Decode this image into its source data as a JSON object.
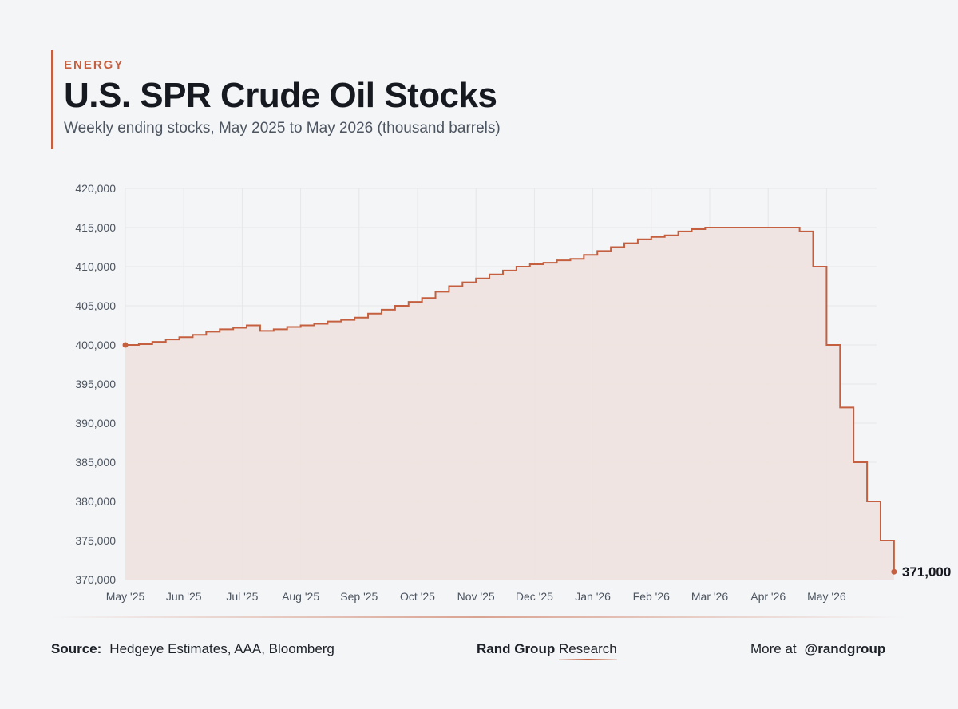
{
  "header": {
    "kicker": "ENERGY",
    "title": "U.S. SPR Crude Oil Stocks",
    "subtitle": "Weekly ending stocks, May 2025 to May 2026 (thousand barrels)"
  },
  "footer": {
    "source_label": "Source:",
    "source_text": "Hedgeye Estimates, AAA, Bloomberg",
    "brand_name": "Rand Group",
    "brand_sub": "Research",
    "more_label": "More at",
    "handle": "@randgroup"
  },
  "colors": {
    "accent": "#c4603f",
    "fill": "#f0e2df",
    "grid": "#e4e6ea",
    "axis_text": "#4c5560"
  },
  "chart_data": {
    "type": "area",
    "step": true,
    "x_ticks": [
      "May '25",
      "Jun '25",
      "Jul '25",
      "Aug '25",
      "Sep '25",
      "Oct '25",
      "Nov '25",
      "Dec '25",
      "Jan '26",
      "Feb '26",
      "Mar '26",
      "Apr '26",
      "May '26"
    ],
    "ylim": [
      370000,
      420000
    ],
    "y_ticks": [
      370000,
      375000,
      380000,
      385000,
      390000,
      395000,
      400000,
      405000,
      410000,
      415000,
      420000
    ],
    "end_label": "371,000",
    "series": [
      {
        "values": [
          400000,
          400100,
          400400,
          400700,
          401000,
          401300,
          401700,
          402000,
          402200,
          402500,
          401800,
          402000,
          402300,
          402500,
          402700,
          403000,
          403200,
          403500,
          404000,
          404500,
          405000,
          405500,
          406000,
          406800,
          407500,
          408000,
          408500,
          409000,
          409500,
          410000,
          410300,
          410500,
          410800,
          411000,
          411500,
          412000,
          412500,
          413000,
          413500,
          413800,
          414000,
          414500,
          414800,
          415000,
          415000,
          415000,
          415000,
          415000,
          415000,
          415000,
          414500,
          410000,
          400000,
          392000,
          385000,
          380000,
          375000,
          371000
        ]
      }
    ]
  }
}
